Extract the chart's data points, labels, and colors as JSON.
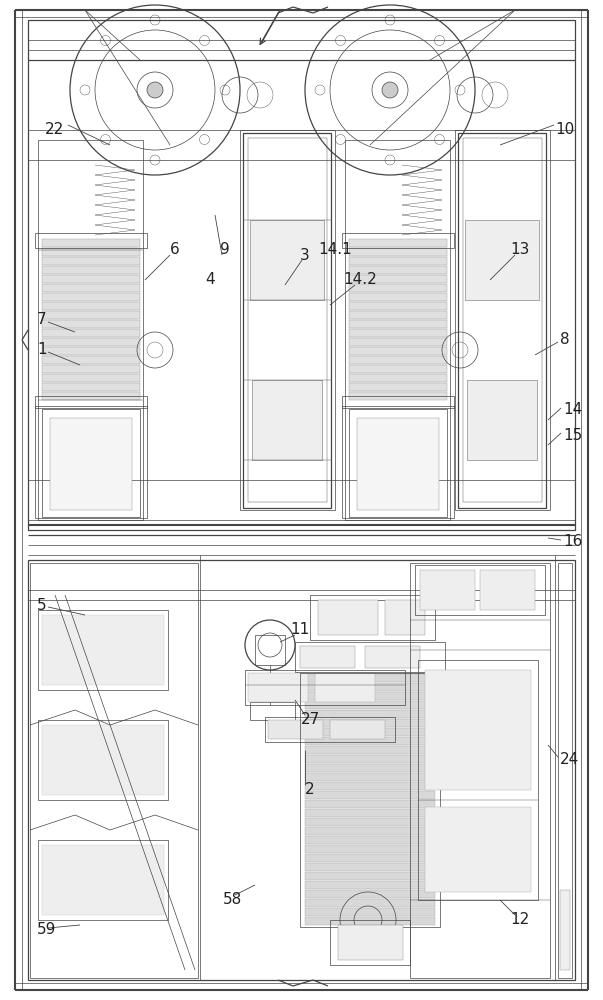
{
  "bg_color": "#ffffff",
  "lc": "#444444",
  "fig_width": 6.03,
  "fig_height": 10.0,
  "dpi": 100,
  "xmin": 0,
  "xmax": 603,
  "ymin": 0,
  "ymax": 1000,
  "lw_outer": 1.5,
  "lw_med": 0.9,
  "lw_thin": 0.5,
  "lw_hair": 0.3,
  "label_fs": 11,
  "label_color": "#222222"
}
